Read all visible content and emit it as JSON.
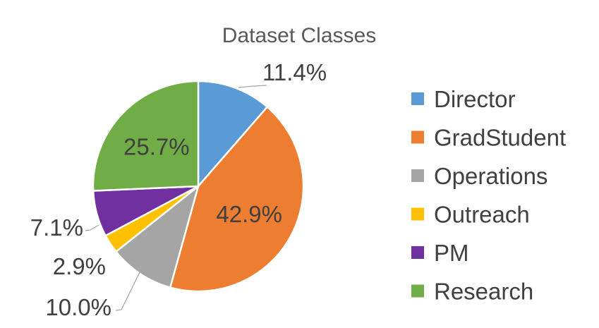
{
  "chart_data": {
    "type": "pie",
    "title": "Dataset Classes",
    "slices": [
      {
        "name": "Director",
        "value": 11.4,
        "label": "11.4%",
        "color": "#5B9BD5"
      },
      {
        "name": "GradStudent",
        "value": 42.9,
        "label": "42.9%",
        "color": "#ED7D31"
      },
      {
        "name": "Operations",
        "value": 10.0,
        "label": "10.0%",
        "color": "#A5A5A5"
      },
      {
        "name": "Outreach",
        "value": 2.9,
        "label": "2.9%",
        "color": "#FFC000"
      },
      {
        "name": "PM",
        "value": 7.1,
        "label": "7.1%",
        "color": "#7030A0"
      },
      {
        "name": "Research",
        "value": 25.7,
        "label": "25.7%",
        "color": "#70AD47"
      }
    ],
    "legend_position": "right"
  }
}
